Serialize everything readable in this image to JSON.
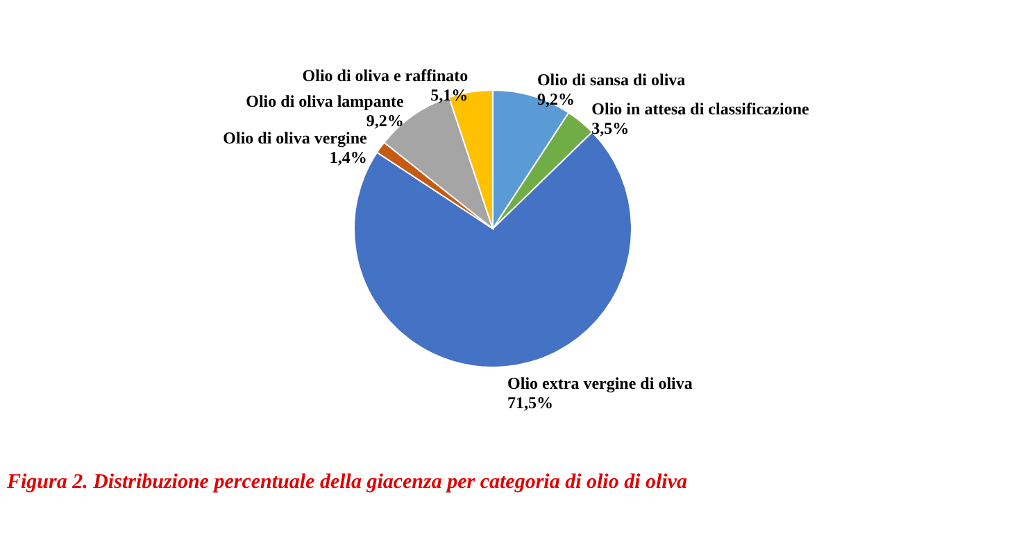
{
  "chart_data": {
    "type": "pie",
    "title": "Figura 2. Distribuzione percentuale della giacenza per categoria di olio di oliva",
    "categories": [
      "Olio di sansa di oliva",
      "Olio in attesa di classificazione",
      "Olio extra vergine di oliva",
      "Olio di oliva vergine",
      "Olio di oliva lampante",
      "Olio di oliva e raffinato"
    ],
    "values": [
      9.2,
      3.5,
      71.5,
      1.4,
      9.2,
      5.1
    ],
    "colors": [
      "#5b9bd5",
      "#70ad47",
      "#4472c4",
      "#c55a11",
      "#a5a5a5",
      "#ffc000"
    ],
    "value_labels": [
      "9,2%",
      "3,5%",
      "71,5%",
      "1,4%",
      "9,2%",
      "5,1%"
    ],
    "legend": false
  }
}
